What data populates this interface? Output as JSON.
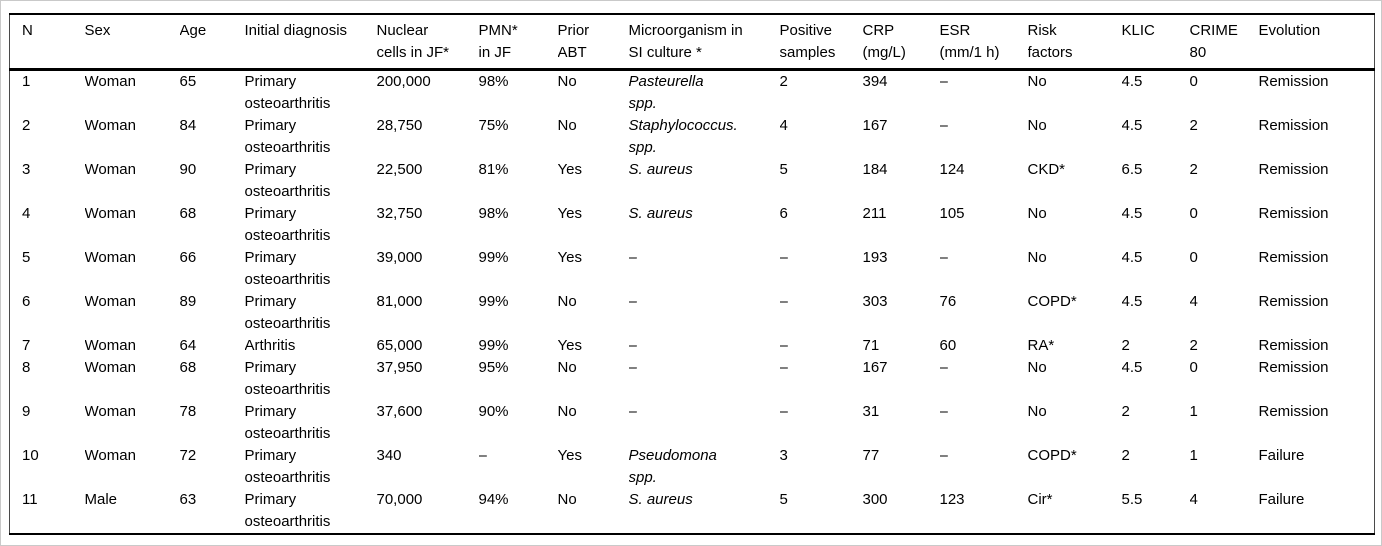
{
  "colors": {
    "text": "#000000",
    "horizontal_rule": "#000000",
    "side_border": "#4a4a4a",
    "frame_border": "#c9c9c9",
    "background": "#ffffff"
  },
  "table": {
    "columns": [
      {
        "key": "n",
        "lines": [
          "N"
        ]
      },
      {
        "key": "sex",
        "lines": [
          "Sex"
        ]
      },
      {
        "key": "age",
        "lines": [
          "Age"
        ]
      },
      {
        "key": "initial-diagnosis",
        "lines": [
          "Initial diagnosis"
        ]
      },
      {
        "key": "nuclear-cells-jf",
        "lines": [
          "Nuclear",
          "cells in JF*"
        ]
      },
      {
        "key": "pmn-in-jf",
        "lines": [
          "PMN*",
          "in JF"
        ]
      },
      {
        "key": "prior-abt",
        "lines": [
          "Prior",
          "ABT"
        ]
      },
      {
        "key": "microorganism",
        "lines": [
          "Microorganism in",
          "SI culture *"
        ],
        "italic": true
      },
      {
        "key": "positive-samples",
        "lines": [
          "Positive",
          "samples"
        ]
      },
      {
        "key": "crp",
        "lines": [
          "CRP",
          "(mg/L)"
        ]
      },
      {
        "key": "esr",
        "lines": [
          "ESR",
          "(mm/1 h)"
        ]
      },
      {
        "key": "risk-factors",
        "lines": [
          "Risk",
          "factors"
        ]
      },
      {
        "key": "klic",
        "lines": [
          "KLIC"
        ]
      },
      {
        "key": "crime-80",
        "lines": [
          "CRIME",
          "80"
        ]
      },
      {
        "key": "evolution",
        "lines": [
          "Evolution"
        ]
      }
    ],
    "rows": [
      [
        [
          "1"
        ],
        [
          "Woman"
        ],
        [
          "65"
        ],
        [
          "Primary",
          "osteoarthritis"
        ],
        [
          "200,000"
        ],
        [
          "98%"
        ],
        [
          "No"
        ],
        [
          "Pasteurella",
          "spp."
        ],
        [
          "2"
        ],
        [
          "394"
        ],
        [
          "–"
        ],
        [
          "No"
        ],
        [
          "4.5"
        ],
        [
          "0"
        ],
        [
          "Remission"
        ]
      ],
      [
        [
          "2"
        ],
        [
          "Woman"
        ],
        [
          "84"
        ],
        [
          "Primary",
          "osteoarthritis"
        ],
        [
          "28,750"
        ],
        [
          "75%"
        ],
        [
          "No"
        ],
        [
          "Staphylococcus.",
          "spp."
        ],
        [
          "4"
        ],
        [
          "167"
        ],
        [
          "–"
        ],
        [
          "No"
        ],
        [
          "4.5"
        ],
        [
          "2"
        ],
        [
          "Remission"
        ]
      ],
      [
        [
          "3"
        ],
        [
          "Woman"
        ],
        [
          "90"
        ],
        [
          "Primary",
          "osteoarthritis"
        ],
        [
          "22,500"
        ],
        [
          "81%"
        ],
        [
          "Yes"
        ],
        [
          "S. aureus"
        ],
        [
          "5"
        ],
        [
          "184"
        ],
        [
          "124"
        ],
        [
          "CKD*"
        ],
        [
          "6.5"
        ],
        [
          "2"
        ],
        [
          "Remission"
        ]
      ],
      [
        [
          "4"
        ],
        [
          "Woman"
        ],
        [
          "68"
        ],
        [
          "Primary",
          "osteoarthritis"
        ],
        [
          "32,750"
        ],
        [
          "98%"
        ],
        [
          "Yes"
        ],
        [
          "S. aureus"
        ],
        [
          "6"
        ],
        [
          "211"
        ],
        [
          "105"
        ],
        [
          "No"
        ],
        [
          "4.5"
        ],
        [
          "0"
        ],
        [
          "Remission"
        ]
      ],
      [
        [
          "5"
        ],
        [
          "Woman"
        ],
        [
          "66"
        ],
        [
          "Primary",
          "osteoarthritis"
        ],
        [
          "39,000"
        ],
        [
          "99%"
        ],
        [
          "Yes"
        ],
        [
          "–"
        ],
        [
          "–"
        ],
        [
          "193"
        ],
        [
          "–"
        ],
        [
          "No"
        ],
        [
          "4.5"
        ],
        [
          "0"
        ],
        [
          "Remission"
        ]
      ],
      [
        [
          "6"
        ],
        [
          "Woman"
        ],
        [
          "89"
        ],
        [
          "Primary",
          "osteoarthritis"
        ],
        [
          "81,000"
        ],
        [
          "99%"
        ],
        [
          "No"
        ],
        [
          "–"
        ],
        [
          "–"
        ],
        [
          "303"
        ],
        [
          "76"
        ],
        [
          "COPD*"
        ],
        [
          "4.5"
        ],
        [
          "4"
        ],
        [
          "Remission"
        ]
      ],
      [
        [
          "7"
        ],
        [
          "Woman"
        ],
        [
          "64"
        ],
        [
          "Arthritis"
        ],
        [
          "65,000"
        ],
        [
          "99%"
        ],
        [
          "Yes"
        ],
        [
          "–"
        ],
        [
          "–"
        ],
        [
          "71"
        ],
        [
          "60"
        ],
        [
          "RA*"
        ],
        [
          "2"
        ],
        [
          "2"
        ],
        [
          "Remission"
        ]
      ],
      [
        [
          "8"
        ],
        [
          "Woman"
        ],
        [
          "68"
        ],
        [
          "Primary",
          "osteoarthritis"
        ],
        [
          "37,950"
        ],
        [
          "95%"
        ],
        [
          "No"
        ],
        [
          "–"
        ],
        [
          "–"
        ],
        [
          "167"
        ],
        [
          "–"
        ],
        [
          "No"
        ],
        [
          "4.5"
        ],
        [
          "0"
        ],
        [
          "Remission"
        ]
      ],
      [
        [
          "9"
        ],
        [
          "Woman"
        ],
        [
          "78"
        ],
        [
          "Primary",
          "osteoarthritis"
        ],
        [
          "37,600"
        ],
        [
          "90%"
        ],
        [
          "No"
        ],
        [
          "–"
        ],
        [
          "–"
        ],
        [
          "31"
        ],
        [
          "–"
        ],
        [
          "No"
        ],
        [
          "2"
        ],
        [
          "1"
        ],
        [
          "Remission"
        ]
      ],
      [
        [
          "10"
        ],
        [
          "Woman"
        ],
        [
          "72"
        ],
        [
          "Primary",
          "osteoarthritis"
        ],
        [
          "340"
        ],
        [
          "–"
        ],
        [
          "Yes"
        ],
        [
          "Pseudomona",
          "spp."
        ],
        [
          "3"
        ],
        [
          "77"
        ],
        [
          "–"
        ],
        [
          "COPD*"
        ],
        [
          "2"
        ],
        [
          "1"
        ],
        [
          "Failure"
        ]
      ],
      [
        [
          "11"
        ],
        [
          "Male"
        ],
        [
          "63"
        ],
        [
          "Primary",
          "osteoarthritis"
        ],
        [
          "70,000"
        ],
        [
          "94%"
        ],
        [
          "No"
        ],
        [
          "S. aureus"
        ],
        [
          "5"
        ],
        [
          "300"
        ],
        [
          "123"
        ],
        [
          "Cir*"
        ],
        [
          "5.5"
        ],
        [
          "4"
        ],
        [
          "Failure"
        ]
      ]
    ]
  }
}
